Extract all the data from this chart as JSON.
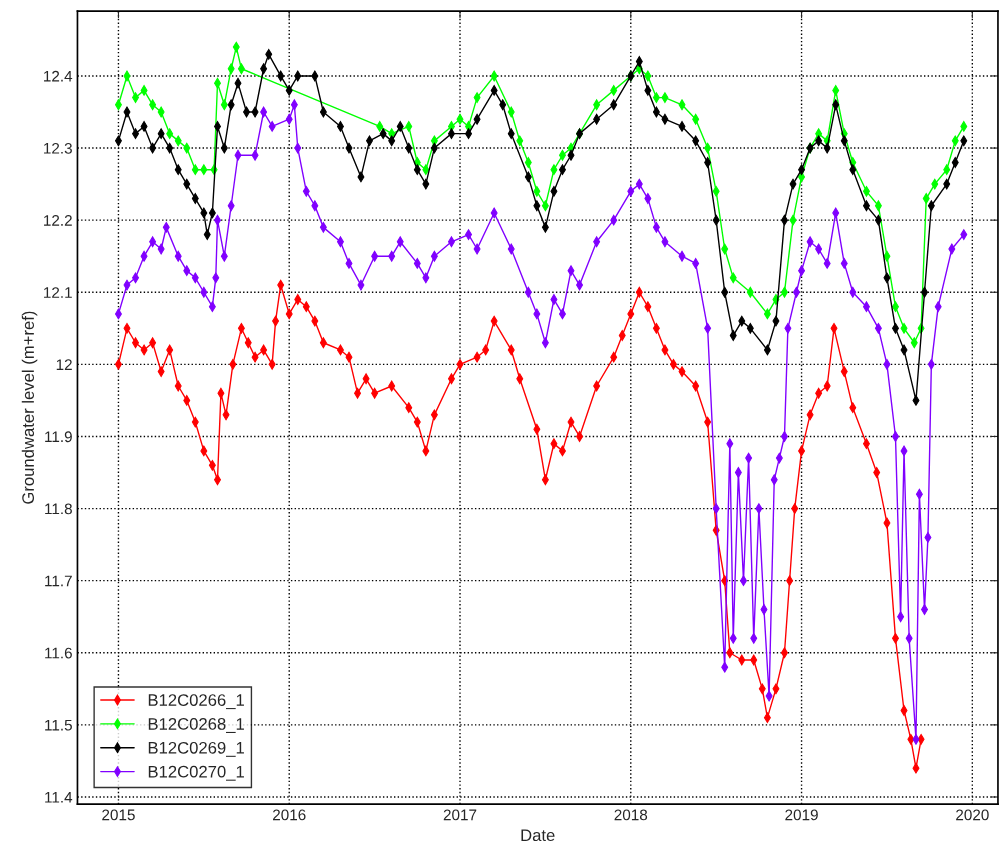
{
  "chart_data": {
    "type": "line",
    "xlabel": "Date",
    "ylabel": "Groundwater level (m+ref)",
    "xlim": [
      2014.76,
      2020.15
    ],
    "xticks": [
      2015,
      2016,
      2017,
      2018,
      2019,
      2020
    ],
    "ylim": [
      11.39,
      12.49
    ],
    "yticks": [
      11.4,
      11.5,
      11.6,
      11.7,
      11.8,
      11.9,
      12,
      12.1,
      12.2,
      12.3,
      12.4
    ],
    "grid": true,
    "legend": "bottom left",
    "marker": "diamond",
    "line_style": "solid",
    "series": [
      {
        "name": "B12C0266_1",
        "color": "#ff0000",
        "x": [
          2015.0,
          2015.05,
          2015.1,
          2015.15,
          2015.2,
          2015.25,
          2015.3,
          2015.35,
          2015.4,
          2015.45,
          2015.5,
          2015.55,
          2015.58,
          2015.6,
          2015.63,
          2015.67,
          2015.72,
          2015.76,
          2015.8,
          2015.85,
          2015.9,
          2015.92,
          2015.95,
          2016.0,
          2016.05,
          2016.1,
          2016.15,
          2016.2,
          2016.3,
          2016.35,
          2016.4,
          2016.45,
          2016.5,
          2016.6,
          2016.7,
          2016.75,
          2016.8,
          2016.85,
          2016.95,
          2017.0,
          2017.1,
          2017.15,
          2017.2,
          2017.3,
          2017.35,
          2017.45,
          2017.5,
          2017.55,
          2017.6,
          2017.65,
          2017.7,
          2017.8,
          2017.9,
          2017.95,
          2018.0,
          2018.05,
          2018.1,
          2018.15,
          2018.2,
          2018.25,
          2018.3,
          2018.38,
          2018.45,
          2018.5,
          2018.55,
          2018.58,
          2018.65,
          2018.72,
          2018.77,
          2018.8,
          2018.85,
          2018.9,
          2018.93,
          2018.96,
          2019.0,
          2019.05,
          2019.1,
          2019.15,
          2019.19,
          2019.25,
          2019.3,
          2019.38,
          2019.44,
          2019.5,
          2019.55,
          2019.6,
          2019.64,
          2019.67,
          2019.7
        ],
        "values": [
          12.0,
          12.05,
          12.03,
          12.02,
          12.03,
          11.99,
          12.02,
          11.97,
          11.95,
          11.92,
          11.88,
          11.86,
          11.84,
          11.96,
          11.93,
          12.0,
          12.05,
          12.03,
          12.01,
          12.02,
          12.0,
          12.06,
          12.11,
          12.07,
          12.09,
          12.08,
          12.06,
          12.03,
          12.02,
          12.01,
          11.96,
          11.98,
          11.96,
          11.97,
          11.94,
          11.92,
          11.88,
          11.93,
          11.98,
          12.0,
          12.01,
          12.02,
          12.06,
          12.02,
          11.98,
          11.91,
          11.84,
          11.89,
          11.88,
          11.92,
          11.9,
          11.97,
          12.01,
          12.04,
          12.07,
          12.1,
          12.08,
          12.05,
          12.02,
          12.0,
          11.99,
          11.97,
          11.92,
          11.77,
          11.7,
          11.6,
          11.59,
          11.59,
          11.55,
          11.51,
          11.55,
          11.6,
          11.7,
          11.8,
          11.88,
          11.93,
          11.96,
          11.97,
          12.05,
          11.99,
          11.94,
          11.89,
          11.85,
          11.78,
          11.62,
          11.52,
          11.48,
          11.44,
          11.48
        ]
      },
      {
        "name": "B12C0268_1",
        "color": "#00ff00",
        "x": [
          2015.0,
          2015.05,
          2015.1,
          2015.15,
          2015.2,
          2015.25,
          2015.3,
          2015.35,
          2015.4,
          2015.45,
          2015.5,
          2015.56,
          2015.58,
          2015.62,
          2015.66,
          2015.69,
          2015.72,
          2016.53,
          2016.6,
          2016.7,
          2016.75,
          2016.8,
          2016.85,
          2016.95,
          2017.0,
          2017.05,
          2017.1,
          2017.2,
          2017.3,
          2017.35,
          2017.4,
          2017.45,
          2017.5,
          2017.55,
          2017.6,
          2017.65,
          2017.7,
          2017.8,
          2017.9,
          2018.0,
          2018.05,
          2018.1,
          2018.15,
          2018.2,
          2018.3,
          2018.38,
          2018.45,
          2018.5,
          2018.55,
          2018.6,
          2018.7,
          2018.8,
          2018.85,
          2018.9,
          2018.95,
          2019.0,
          2019.05,
          2019.1,
          2019.15,
          2019.2,
          2019.25,
          2019.3,
          2019.38,
          2019.45,
          2019.5,
          2019.55,
          2019.6,
          2019.66,
          2019.7,
          2019.73,
          2019.78,
          2019.85,
          2019.9,
          2019.95
        ],
        "values": [
          12.36,
          12.4,
          12.37,
          12.38,
          12.36,
          12.35,
          12.32,
          12.31,
          12.3,
          12.27,
          12.27,
          12.27,
          12.39,
          12.36,
          12.41,
          12.44,
          12.41,
          12.33,
          12.32,
          12.33,
          12.28,
          12.27,
          12.31,
          12.33,
          12.34,
          12.33,
          12.37,
          12.4,
          12.35,
          12.31,
          12.28,
          12.24,
          12.22,
          12.27,
          12.29,
          12.3,
          12.32,
          12.36,
          12.38,
          12.4,
          12.41,
          12.4,
          12.37,
          12.37,
          12.36,
          12.34,
          12.3,
          12.24,
          12.16,
          12.12,
          12.1,
          12.07,
          12.09,
          12.1,
          12.2,
          12.26,
          12.3,
          12.32,
          12.31,
          12.38,
          12.32,
          12.28,
          12.24,
          12.22,
          12.15,
          12.08,
          12.05,
          12.03,
          12.05,
          12.23,
          12.25,
          12.27,
          12.31,
          12.33
        ]
      },
      {
        "name": "B12C0269_1",
        "color": "#000000",
        "x": [
          2015.0,
          2015.05,
          2015.1,
          2015.15,
          2015.2,
          2015.25,
          2015.3,
          2015.35,
          2015.4,
          2015.45,
          2015.5,
          2015.52,
          2015.55,
          2015.58,
          2015.62,
          2015.66,
          2015.7,
          2015.75,
          2015.8,
          2015.85,
          2015.88,
          2015.95,
          2016.0,
          2016.05,
          2016.15,
          2016.2,
          2016.3,
          2016.35,
          2016.42,
          2016.47,
          2016.55,
          2016.6,
          2016.65,
          2016.7,
          2016.75,
          2016.8,
          2016.85,
          2016.95,
          2017.05,
          2017.1,
          2017.2,
          2017.25,
          2017.3,
          2017.4,
          2017.45,
          2017.5,
          2017.55,
          2017.6,
          2017.65,
          2017.7,
          2017.8,
          2017.9,
          2018.0,
          2018.05,
          2018.1,
          2018.15,
          2018.2,
          2018.3,
          2018.38,
          2018.45,
          2018.5,
          2018.55,
          2018.6,
          2018.65,
          2018.7,
          2018.8,
          2018.85,
          2018.9,
          2018.95,
          2019.0,
          2019.05,
          2019.1,
          2019.15,
          2019.2,
          2019.25,
          2019.3,
          2019.38,
          2019.45,
          2019.5,
          2019.55,
          2019.6,
          2019.67,
          2019.72,
          2019.76,
          2019.85,
          2019.9,
          2019.95
        ],
        "values": [
          12.31,
          12.35,
          12.32,
          12.33,
          12.3,
          12.32,
          12.3,
          12.27,
          12.25,
          12.23,
          12.21,
          12.18,
          12.21,
          12.33,
          12.3,
          12.36,
          12.39,
          12.35,
          12.35,
          12.41,
          12.43,
          12.4,
          12.38,
          12.4,
          12.4,
          12.35,
          12.33,
          12.3,
          12.26,
          12.31,
          12.32,
          12.31,
          12.33,
          12.3,
          12.27,
          12.25,
          12.3,
          12.32,
          12.32,
          12.34,
          12.38,
          12.36,
          12.32,
          12.26,
          12.22,
          12.19,
          12.24,
          12.27,
          12.29,
          12.32,
          12.34,
          12.36,
          12.4,
          12.42,
          12.38,
          12.35,
          12.34,
          12.33,
          12.31,
          12.28,
          12.2,
          12.1,
          12.04,
          12.06,
          12.05,
          12.02,
          12.06,
          12.2,
          12.25,
          12.27,
          12.3,
          12.31,
          12.3,
          12.36,
          12.31,
          12.27,
          12.22,
          12.2,
          12.12,
          12.05,
          12.02,
          11.95,
          12.1,
          12.22,
          12.25,
          12.28,
          12.31
        ]
      },
      {
        "name": "B12C0270_1",
        "color": "#8000ff",
        "x": [
          2015.0,
          2015.05,
          2015.1,
          2015.15,
          2015.2,
          2015.25,
          2015.28,
          2015.35,
          2015.4,
          2015.45,
          2015.5,
          2015.55,
          2015.57,
          2015.58,
          2015.62,
          2015.66,
          2015.7,
          2015.8,
          2015.85,
          2015.9,
          2016.0,
          2016.03,
          2016.05,
          2016.1,
          2016.15,
          2016.2,
          2016.3,
          2016.35,
          2016.42,
          2016.5,
          2016.6,
          2016.65,
          2016.75,
          2016.8,
          2016.85,
          2016.95,
          2017.05,
          2017.1,
          2017.2,
          2017.3,
          2017.4,
          2017.45,
          2017.5,
          2017.55,
          2017.6,
          2017.65,
          2017.7,
          2017.8,
          2017.9,
          2018.0,
          2018.05,
          2018.1,
          2018.15,
          2018.2,
          2018.3,
          2018.38,
          2018.45,
          2018.5,
          2018.55,
          2018.58,
          2018.6,
          2018.63,
          2018.66,
          2018.69,
          2018.72,
          2018.75,
          2018.78,
          2018.81,
          2018.84,
          2018.87,
          2018.9,
          2018.92,
          2018.97,
          2019.0,
          2019.05,
          2019.1,
          2019.15,
          2019.2,
          2019.25,
          2019.3,
          2019.38,
          2019.45,
          2019.5,
          2019.55,
          2019.58,
          2019.6,
          2019.63,
          2019.67,
          2019.69,
          2019.72,
          2019.74,
          2019.76,
          2019.8,
          2019.88,
          2019.95
        ],
        "values": [
          12.07,
          12.11,
          12.12,
          12.15,
          12.17,
          12.16,
          12.19,
          12.15,
          12.13,
          12.12,
          12.1,
          12.08,
          12.12,
          12.2,
          12.15,
          12.22,
          12.29,
          12.29,
          12.35,
          12.33,
          12.34,
          12.36,
          12.3,
          12.24,
          12.22,
          12.19,
          12.17,
          12.14,
          12.11,
          12.15,
          12.15,
          12.17,
          12.14,
          12.12,
          12.15,
          12.17,
          12.18,
          12.16,
          12.21,
          12.16,
          12.1,
          12.07,
          12.03,
          12.09,
          12.07,
          12.13,
          12.11,
          12.17,
          12.2,
          12.24,
          12.25,
          12.23,
          12.19,
          12.17,
          12.15,
          12.14,
          12.05,
          11.8,
          11.58,
          11.89,
          11.62,
          11.85,
          11.7,
          11.87,
          11.62,
          11.8,
          11.66,
          11.54,
          11.84,
          11.87,
          11.9,
          12.05,
          12.1,
          12.13,
          12.17,
          12.16,
          12.14,
          12.21,
          12.14,
          12.1,
          12.08,
          12.05,
          12.0,
          11.9,
          11.65,
          11.88,
          11.62,
          11.48,
          11.82,
          11.66,
          11.76,
          12.0,
          12.08,
          12.16,
          12.18
        ]
      }
    ]
  }
}
